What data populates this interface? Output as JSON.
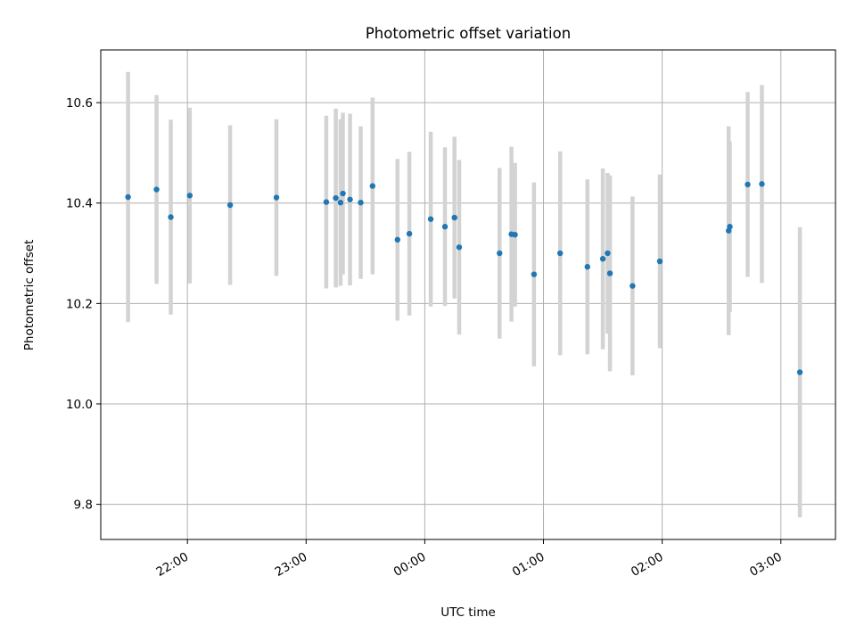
{
  "chart_data": {
    "type": "scatter",
    "title": "Photometric offset variation",
    "xlabel": "UTC time",
    "ylabel": "Photometric offset",
    "grid": true,
    "x_is_time": true,
    "x_unit": "hours after midnight UTC (negative = previous day)",
    "xlim": [
      -2.73,
      3.46
    ],
    "ylim": [
      9.73,
      10.705
    ],
    "x_ticks": [
      {
        "value": -2,
        "label": "22:00"
      },
      {
        "value": -1,
        "label": "23:00"
      },
      {
        "value": 0,
        "label": "00:00"
      },
      {
        "value": 1,
        "label": "01:00"
      },
      {
        "value": 2,
        "label": "02:00"
      },
      {
        "value": 3,
        "label": "03:00"
      }
    ],
    "y_ticks": [
      {
        "value": 9.8,
        "label": "9.8"
      },
      {
        "value": 10.0,
        "label": "10.0"
      },
      {
        "value": 10.2,
        "label": "10.2"
      },
      {
        "value": 10.4,
        "label": "10.4"
      },
      {
        "value": 10.6,
        "label": "10.6"
      }
    ],
    "colors": {
      "point": "#1f77b4",
      "errorbar": "#d3d3d3",
      "grid": "#b0b0b0",
      "axes": "#000000"
    },
    "points": [
      {
        "x": -2.5,
        "y": 10.412,
        "err": 0.249
      },
      {
        "x": -2.26,
        "y": 10.427,
        "err": 0.188
      },
      {
        "x": -2.14,
        "y": 10.372,
        "err": 0.194
      },
      {
        "x": -1.98,
        "y": 10.415,
        "err": 0.175
      },
      {
        "x": -1.64,
        "y": 10.396,
        "err": 0.159
      },
      {
        "x": -1.25,
        "y": 10.411,
        "err": 0.156
      },
      {
        "x": -0.83,
        "y": 10.402,
        "err": 0.172
      },
      {
        "x": -0.75,
        "y": 10.41,
        "err": 0.178
      },
      {
        "x": -0.71,
        "y": 10.401,
        "err": 0.166
      },
      {
        "x": -0.69,
        "y": 10.419,
        "err": 0.161
      },
      {
        "x": -0.63,
        "y": 10.407,
        "err": 0.171
      },
      {
        "x": -0.54,
        "y": 10.401,
        "err": 0.152
      },
      {
        "x": -0.44,
        "y": 10.434,
        "err": 0.176
      },
      {
        "x": -0.23,
        "y": 10.327,
        "err": 0.161
      },
      {
        "x": -0.13,
        "y": 10.339,
        "err": 0.163
      },
      {
        "x": 0.05,
        "y": 10.368,
        "err": 0.174
      },
      {
        "x": 0.17,
        "y": 10.353,
        "err": 0.158
      },
      {
        "x": 0.25,
        "y": 10.371,
        "err": 0.161
      },
      {
        "x": 0.29,
        "y": 10.312,
        "err": 0.174
      },
      {
        "x": 0.63,
        "y": 10.3,
        "err": 0.17
      },
      {
        "x": 0.73,
        "y": 10.338,
        "err": 0.174
      },
      {
        "x": 0.76,
        "y": 10.337,
        "err": 0.143
      },
      {
        "x": 0.92,
        "y": 10.258,
        "err": 0.183
      },
      {
        "x": 1.14,
        "y": 10.3,
        "err": 0.203
      },
      {
        "x": 1.37,
        "y": 10.273,
        "err": 0.174
      },
      {
        "x": 1.5,
        "y": 10.289,
        "err": 0.18
      },
      {
        "x": 1.54,
        "y": 10.3,
        "err": 0.16
      },
      {
        "x": 1.56,
        "y": 10.26,
        "err": 0.195
      },
      {
        "x": 1.75,
        "y": 10.235,
        "err": 0.178
      },
      {
        "x": 1.98,
        "y": 10.284,
        "err": 0.173
      },
      {
        "x": 2.56,
        "y": 10.345,
        "err": 0.208
      },
      {
        "x": 2.57,
        "y": 10.353,
        "err": 0.17
      },
      {
        "x": 2.72,
        "y": 10.437,
        "err": 0.184
      },
      {
        "x": 2.84,
        "y": 10.438,
        "err": 0.197
      },
      {
        "x": 3.16,
        "y": 10.063,
        "err": 0.289
      }
    ]
  }
}
